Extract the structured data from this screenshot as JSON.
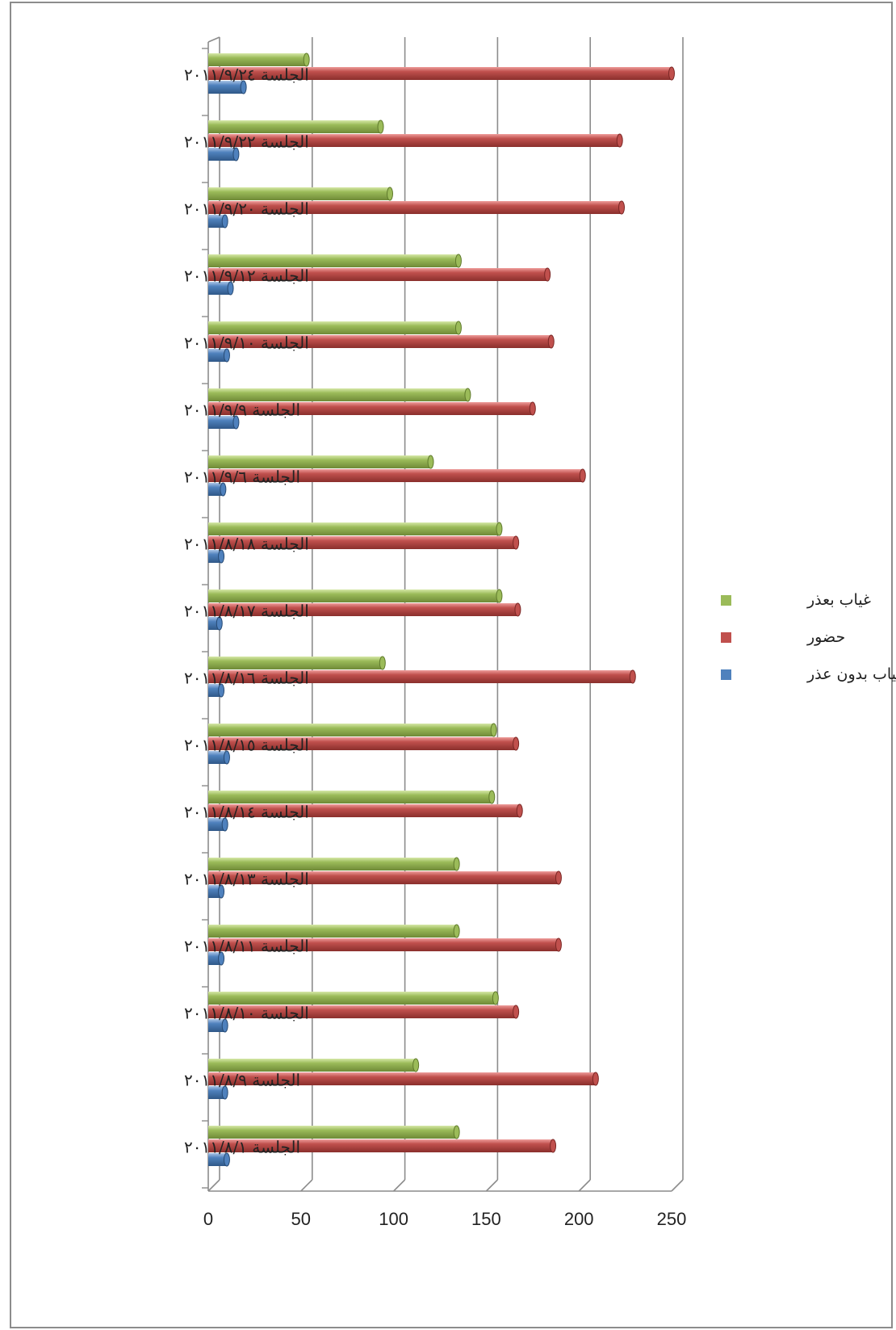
{
  "chart_data": {
    "type": "bar",
    "orientation": "horizontal",
    "title": "",
    "xlabel": "",
    "ylabel": "",
    "xlim": [
      0,
      250
    ],
    "x_ticks": [
      "0",
      "50",
      "100",
      "150",
      "200",
      "250"
    ],
    "grid": true,
    "legend_position": "right",
    "categories": [
      "الجلسة ٢٠١١/٩/٢٤",
      "الجلسة ٢٠١١/٩/٢٢",
      "الجلسة ٢٠١١/٩/٢٠",
      "الجلسة ٢٠١١/٩/١٢",
      "الجلسة ٢٠١١/٩/١٠",
      "الجلسة ٢٠١١/٩/٩",
      "الجلسة ٢٠١١/٩/٦",
      "الجلسة ٢٠١١/٨/١٨",
      "الجلسة ٢٠١١/٨/١٧",
      "الجلسة ٢٠١١/٨/١٦",
      "الجلسة ٢٠١١/٨/١٥",
      "الجلسة ٢٠١١/٨/١٤",
      "الجلسة ٢٠١١/٨/١٣",
      "الجلسة ٢٠١١/٨/١١",
      "الجلسة ٢٠١١/٨/١٠",
      "الجلسة ٢٠١١/٨/٩",
      "الجلسة ٢٠١١/٨/١"
    ],
    "series": [
      {
        "name": "غياب بعذر",
        "color": "#9bbb59",
        "values": [
          53,
          93,
          98,
          135,
          135,
          140,
          120,
          157,
          157,
          94,
          154,
          153,
          134,
          134,
          155,
          112,
          134
        ]
      },
      {
        "name": "حضور",
        "color": "#c0504d",
        "values": [
          250,
          222,
          223,
          183,
          185,
          175,
          202,
          166,
          167,
          229,
          166,
          168,
          189,
          189,
          166,
          209,
          186
        ]
      },
      {
        "name": "غياب بدون عذر",
        "color": "#4f81bd",
        "values": [
          19,
          15,
          9,
          12,
          10,
          15,
          8,
          7,
          6,
          7,
          10,
          9,
          7,
          7,
          9,
          9,
          10
        ]
      }
    ]
  }
}
